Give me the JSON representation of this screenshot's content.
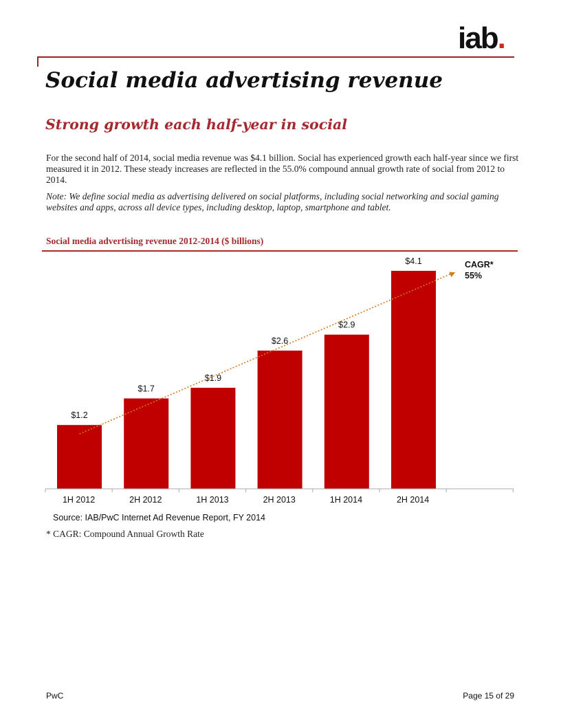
{
  "logo": {
    "text": "iab",
    "dot": "."
  },
  "page": {
    "title": "Social media advertising revenue",
    "subtitle": "Strong growth each half-year in social",
    "body": "For the second half of 2014, social media revenue was $4.1 billion. Social has experienced growth each half-year since we first measured it in 2012. These steady increases are reflected in the 55.0% compound annual growth rate of social from 2012 to 2014.",
    "note": "Note: We define social media as advertising delivered on social platforms, including social networking and social gaming websites and apps, across all device types, including desktop, laptop, smartphone and tablet.",
    "chart_title": "Social media advertising revenue 2012-2014 ($ billions)",
    "source": "Source: IAB/PwC Internet Ad Revenue Report, FY 2014",
    "footnote": "* CAGR: Compound Annual Growth Rate"
  },
  "footer": {
    "left": "PwC",
    "right": "Page 15 of 29"
  },
  "colors": {
    "accent": "#a5292e",
    "bar": "#c00000",
    "trend": "#d07a1e"
  },
  "chart_data": {
    "type": "bar",
    "categories": [
      "1H 2012",
      "2H 2012",
      "1H 2013",
      "2H 2013",
      "1H 2014",
      "2H 2014"
    ],
    "values": [
      1.2,
      1.7,
      1.9,
      2.6,
      2.9,
      4.1
    ],
    "data_labels": [
      "$1.2",
      "$1.7",
      "$1.9",
      "$2.6",
      "$2.9",
      "$4.1"
    ],
    "ylim": [
      0,
      4.5
    ],
    "trendline": {
      "from_value": 1.2,
      "to_value": 4.2,
      "style": "dotted-arrow"
    },
    "annotation": {
      "line1": "CAGR*",
      "line2": "55%"
    },
    "grid": false,
    "legend": "none"
  }
}
